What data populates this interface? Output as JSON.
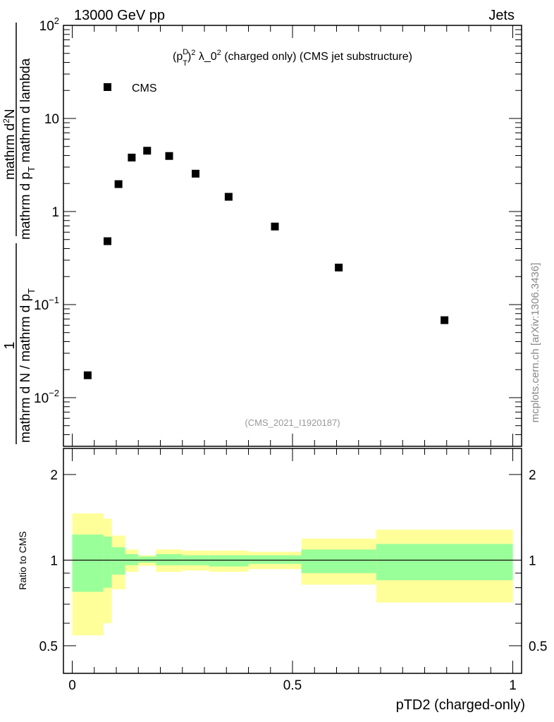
{
  "header": {
    "left": "13000 GeV pp",
    "right": "Jets"
  },
  "side_label": "mcplots.cern.ch [arXiv:1306.3436]",
  "ylabel": {
    "left_num": "1",
    "left_den": "mathrm d N / mathrm d p",
    "left_den_sub": "T",
    "right_num": "mathrm d",
    "right_num_sup": "2",
    "right_num_end": "N",
    "right_den": "mathrm d p",
    "right_den_sub": "T",
    "right_den_end": " mathrm d lambda"
  },
  "chart_data": [
    {
      "type": "scatter",
      "title": "(p_T^D)^2 λ_0^2 (charged only) (CMS jet substructure)",
      "title_parts": {
        "open": "(p",
        "sup1": "D",
        "sub1": "T",
        "close": ")",
        "sup2": "2",
        "mid": " λ_0",
        "sup3": "2",
        "rest": " (charged only) (CMS jet substructure)"
      },
      "watermark": "(CMS_2021_I1920187)",
      "legend": [
        {
          "name": "CMS",
          "marker": "square",
          "color": "#000000"
        }
      ],
      "legend_placement": "top-left",
      "yscale": "log",
      "ylim": [
        0.003,
        100
      ],
      "xlim": [
        -0.02,
        1.02
      ],
      "ytick_labels": [
        {
          "v": 0.01,
          "base": "10",
          "exp": "−2"
        },
        {
          "v": 0.1,
          "base": "10",
          "exp": "−1"
        },
        {
          "v": 1,
          "base": "1",
          "exp": ""
        },
        {
          "v": 10,
          "base": "10",
          "exp": ""
        },
        {
          "v": 100,
          "base": "10",
          "exp": "2"
        }
      ],
      "x": [
        0.035,
        0.08,
        0.105,
        0.135,
        0.17,
        0.22,
        0.28,
        0.355,
        0.46,
        0.605,
        0.845
      ],
      "y": [
        0.0174,
        0.48,
        1.97,
        3.8,
        4.5,
        3.95,
        2.55,
        1.44,
        0.69,
        0.25,
        0.068
      ]
    },
    {
      "type": "area",
      "ylabel": "Ratio to CMS",
      "xlabel": "pTD2 (charged-only)",
      "yscale": "log",
      "ylim": [
        0.4,
        2.47
      ],
      "xlim": [
        -0.02,
        1.02
      ],
      "ytick_labels": [
        {
          "v": 0.5,
          "t": "0.5"
        },
        {
          "v": 1,
          "t": "1"
        },
        {
          "v": 2,
          "t": "2"
        }
      ],
      "xtick_labels": [
        {
          "v": 0,
          "t": "0"
        },
        {
          "v": 0.5,
          "t": "0.5"
        },
        {
          "v": 1,
          "t": "1"
        }
      ],
      "bin_edges": [
        0,
        0.07,
        0.09,
        0.12,
        0.15,
        0.19,
        0.25,
        0.31,
        0.4,
        0.52,
        0.69,
        1.0
      ],
      "band_outer_hi": [
        1.46,
        1.4,
        1.22,
        1.09,
        1.04,
        1.09,
        1.08,
        1.08,
        1.07,
        1.19,
        1.28
      ],
      "band_outer_lo": [
        0.544,
        0.6,
        0.79,
        0.91,
        0.955,
        0.91,
        0.92,
        0.91,
        0.93,
        0.82,
        0.71
      ],
      "band_inner_hi": [
        1.23,
        1.21,
        1.11,
        1.05,
        1.03,
        1.05,
        1.04,
        1.04,
        1.04,
        1.09,
        1.14
      ],
      "band_inner_lo": [
        0.774,
        0.8,
        0.89,
        0.96,
        0.98,
        0.96,
        0.96,
        0.95,
        0.97,
        0.9,
        0.85
      ],
      "colors": {
        "outer": "#ffff99",
        "inner": "#99ff99",
        "line": "#000000"
      }
    }
  ]
}
